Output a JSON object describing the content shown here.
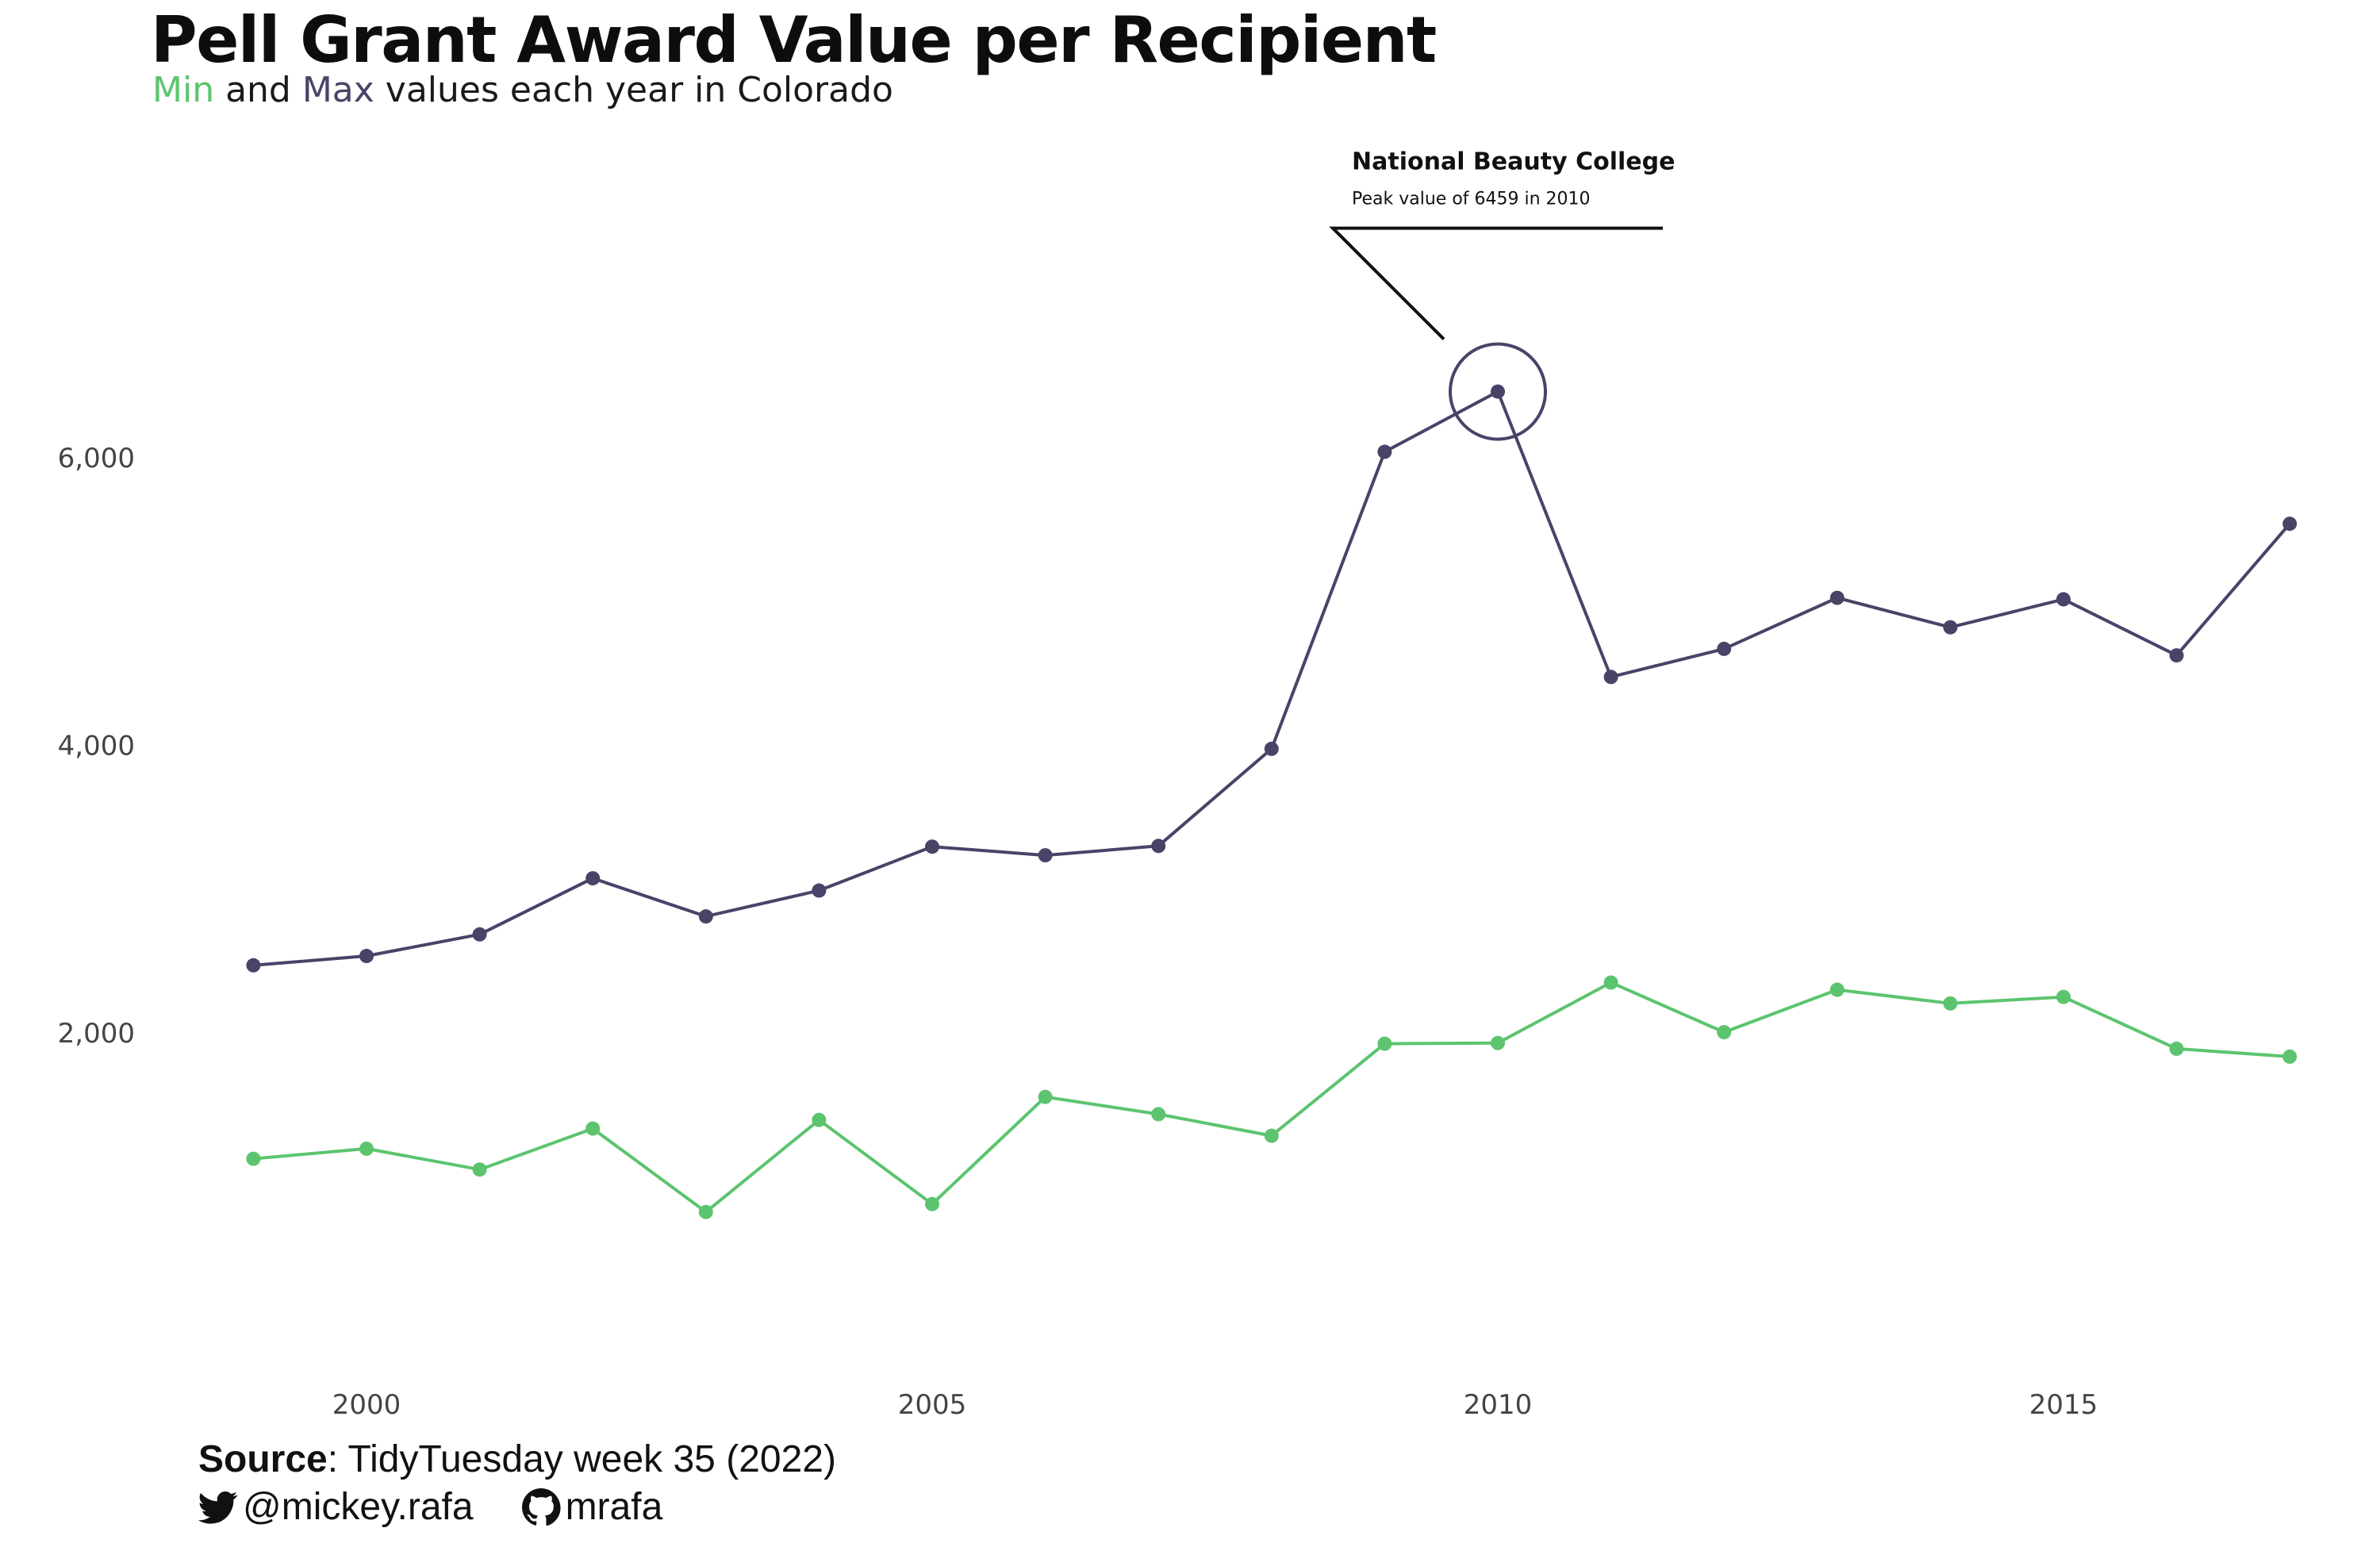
{
  "chart_data": {
    "type": "line",
    "title": "Pell Grant Award Value per Recipient",
    "subtitle": {
      "min_word": "Min",
      "and_word": " and ",
      "max_word": "Max",
      "rest": " values each year in Colorado"
    },
    "x": [
      1999,
      2000,
      2001,
      2002,
      2003,
      2004,
      2005,
      2006,
      2007,
      2008,
      2009,
      2010,
      2011,
      2012,
      2013,
      2014,
      2015,
      2016,
      2017
    ],
    "series": [
      {
        "name": "Max",
        "color": "#4a4368",
        "values": [
          2470,
          2535,
          2685,
          3075,
          2810,
          2990,
          3295,
          3235,
          3300,
          3975,
          6040,
          6459,
          4475,
          4670,
          5025,
          4820,
          5015,
          4625,
          5540
        ]
      },
      {
        "name": "Min",
        "color": "#5cc46e",
        "values": [
          1125,
          1195,
          1050,
          1335,
          755,
          1395,
          810,
          1555,
          1435,
          1285,
          1925,
          1930,
          2350,
          2005,
          2300,
          2205,
          2250,
          1890,
          1835
        ]
      }
    ],
    "xticks": [
      2000,
      2005,
      2010,
      2015
    ],
    "yticks": [
      2000,
      4000,
      6000
    ],
    "ytick_labels": [
      "2,000",
      "4,000",
      "6,000"
    ],
    "grid": false,
    "annotation": {
      "title": "National Beauty College",
      "text": "Peak value of 6459 in 2010",
      "x": 2010,
      "y": 6459
    }
  },
  "caption": {
    "source_label": "Source",
    "source_text": ": TidyTuesday week 35 (2022)",
    "twitter": "@mickey.rafa",
    "github": "mrafa",
    "twitter_icon": "twitter-icon",
    "github_icon": "github-icon"
  }
}
